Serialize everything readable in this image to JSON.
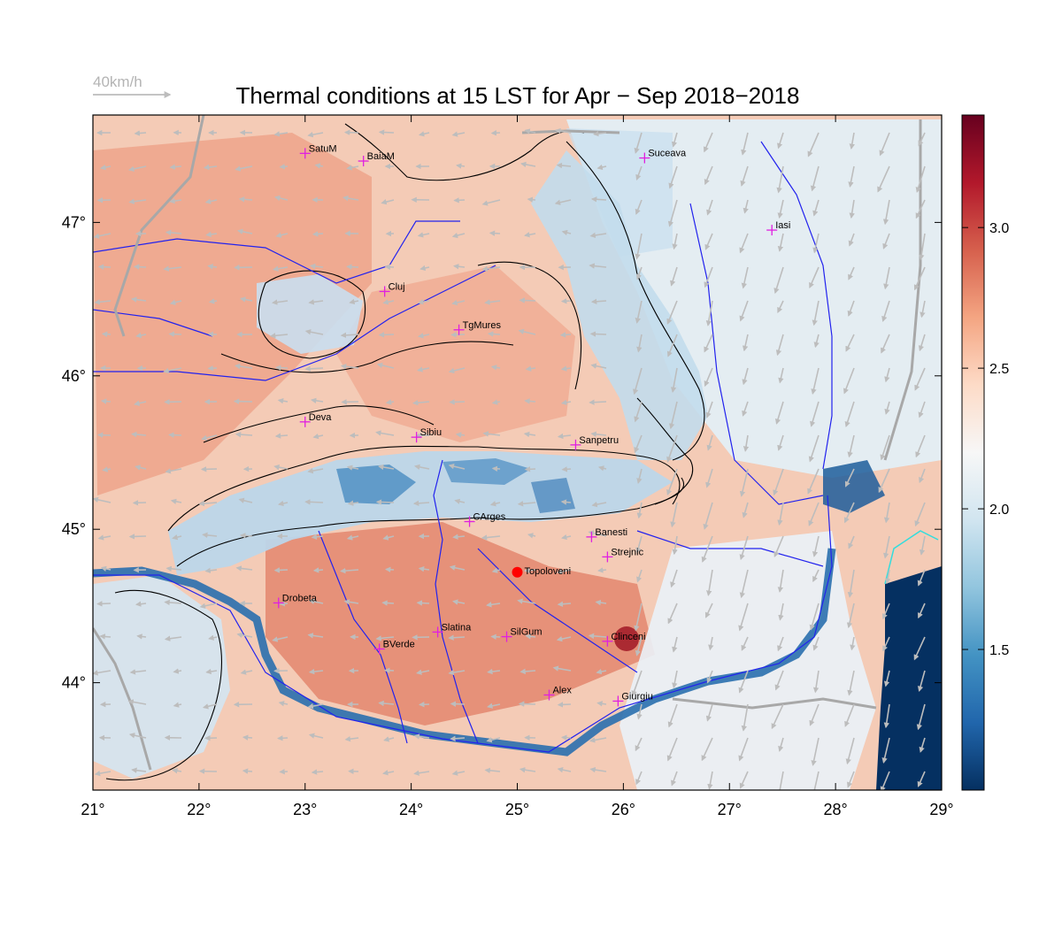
{
  "title": "Thermal conditions at 15 LST for Apr − Sep  2018−2018",
  "wind_scale": {
    "label": "40km/h"
  },
  "map": {
    "lon_range": [
      21,
      29
    ],
    "lat_range": [
      43.3,
      47.7
    ],
    "lon_ticks": [
      {
        "value": 21,
        "label": "21°"
      },
      {
        "value": 22,
        "label": "22°"
      },
      {
        "value": 23,
        "label": "23°"
      },
      {
        "value": 24,
        "label": "24°"
      },
      {
        "value": 25,
        "label": "25°"
      },
      {
        "value": 26,
        "label": "26°"
      },
      {
        "value": 27,
        "label": "27°"
      },
      {
        "value": 28,
        "label": "28°"
      },
      {
        "value": 29,
        "label": "29°"
      }
    ],
    "lat_ticks": [
      {
        "value": 44,
        "label": "44°"
      },
      {
        "value": 45,
        "label": "45°"
      },
      {
        "value": 46,
        "label": "46°"
      },
      {
        "value": 47,
        "label": "47°"
      }
    ],
    "cities": [
      {
        "name": "SatuM",
        "lon": 23.0,
        "lat": 47.45
      },
      {
        "name": "BaiaM",
        "lon": 23.55,
        "lat": 47.4
      },
      {
        "name": "Suceava",
        "lon": 26.2,
        "lat": 47.42
      },
      {
        "name": "Iasi",
        "lon": 27.4,
        "lat": 46.95
      },
      {
        "name": "Cluj",
        "lon": 23.75,
        "lat": 46.55
      },
      {
        "name": "TgMures",
        "lon": 24.45,
        "lat": 46.3
      },
      {
        "name": "Deva",
        "lon": 23.0,
        "lat": 45.7
      },
      {
        "name": "Sibiu",
        "lon": 24.05,
        "lat": 45.6
      },
      {
        "name": "Sanpetru",
        "lon": 25.55,
        "lat": 45.55
      },
      {
        "name": "CArges",
        "lon": 24.55,
        "lat": 45.05
      },
      {
        "name": "Banesti",
        "lon": 25.7,
        "lat": 44.95
      },
      {
        "name": "Strejnic",
        "lon": 25.85,
        "lat": 44.82
      },
      {
        "name": "Drobeta",
        "lon": 22.75,
        "lat": 44.52
      },
      {
        "name": "Slatina",
        "lon": 24.25,
        "lat": 44.33
      },
      {
        "name": "SilGum",
        "lon": 24.9,
        "lat": 44.3
      },
      {
        "name": "Clinceni",
        "lon": 25.85,
        "lat": 44.27
      },
      {
        "name": "BVerde",
        "lon": 23.7,
        "lat": 44.22
      },
      {
        "name": "Alex",
        "lon": 25.3,
        "lat": 43.92
      },
      {
        "name": "Giurgiu",
        "lon": 25.95,
        "lat": 43.88
      }
    ],
    "highlight_site": {
      "name": "Topoloveni",
      "lon": 25.0,
      "lat": 44.72,
      "color": "#ff0000"
    }
  },
  "colorbar": {
    "min": 1.0,
    "max": 3.4,
    "ticks": [
      {
        "value": 1.5,
        "label": "1.5"
      },
      {
        "value": 2.0,
        "label": "2.0"
      },
      {
        "value": 2.5,
        "label": "2.5"
      },
      {
        "value": 3.0,
        "label": "3.0"
      }
    ],
    "colors": [
      "#053061",
      "#2166ac",
      "#4393c3",
      "#92c5de",
      "#d1e5f0",
      "#f7f7f7",
      "#fddbc7",
      "#f4a582",
      "#d6604d",
      "#b2182b",
      "#67001f"
    ]
  },
  "colors": {
    "river": "#2222ee",
    "border": "#a8a8a8",
    "contour": "#000000",
    "wind_arrow": "#bdbdbd",
    "city_marker": "#e020e0",
    "coast": "#33dddd"
  }
}
